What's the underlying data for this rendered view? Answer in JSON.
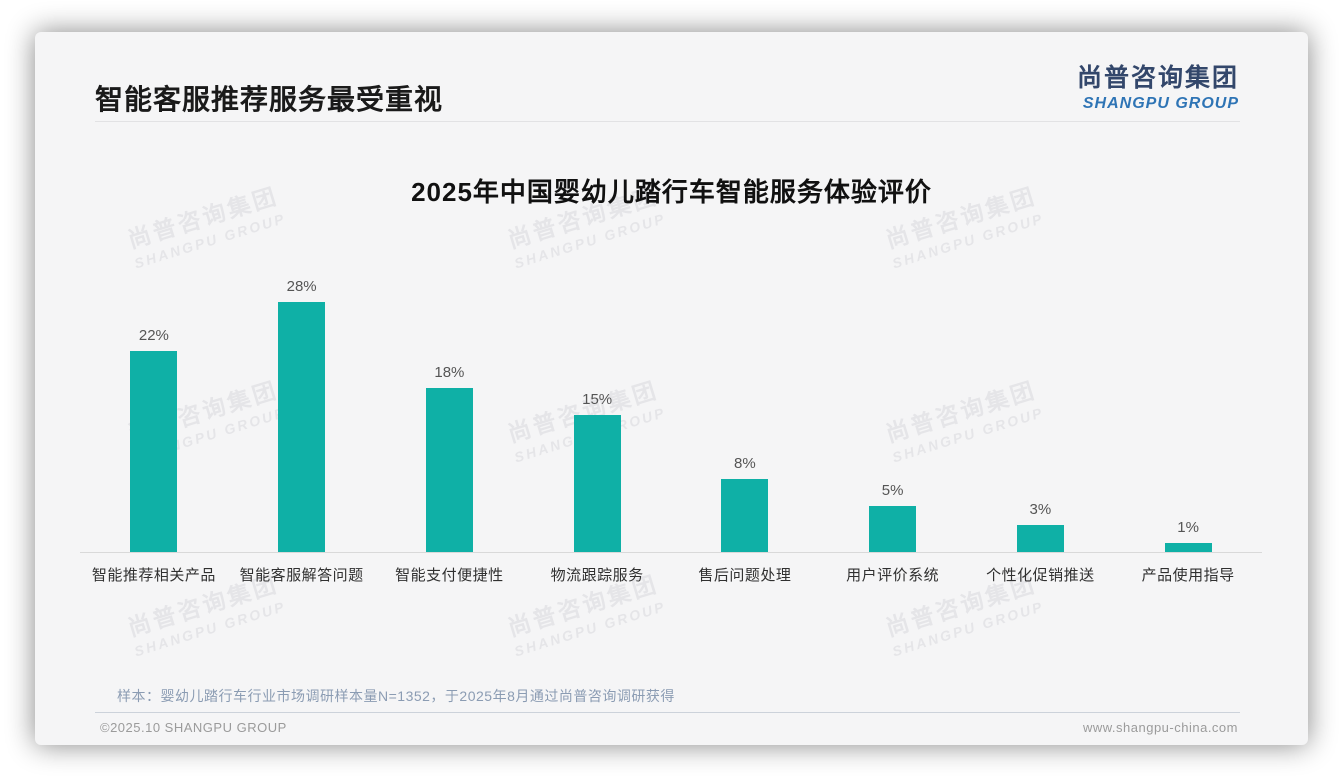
{
  "header": {
    "title": "智能客服推荐服务最受重视",
    "logo_cn": "尚普咨询集团",
    "logo_en": "SHANGPU GROUP"
  },
  "watermark": {
    "cn": "尚普咨询集团",
    "en": "SHANGPU GROUP"
  },
  "chart_data": {
    "type": "bar",
    "title": "2025年中国婴幼儿踏行车智能服务体验评价",
    "categories": [
      "智能推荐相关产品",
      "智能客服解答问题",
      "智能支付便捷性",
      "物流跟踪服务",
      "售后问题处理",
      "用户评价系统",
      "个性化促销推送",
      "产品使用指导"
    ],
    "values": [
      22,
      28,
      18,
      15,
      8,
      5,
      3,
      1
    ],
    "data_labels": [
      "22%",
      "28%",
      "18%",
      "15%",
      "8%",
      "5%",
      "3%",
      "1%"
    ],
    "unit": "%",
    "ylim": [
      0,
      30
    ],
    "grid": false,
    "legend": "none",
    "xlabel": "",
    "ylabel": "",
    "bar_color": "#0fb0a6"
  },
  "footer": {
    "note": "样本：婴幼儿踏行车行业市场调研样本量N=1352，于2025年8月通过尚普咨询调研获得",
    "copyright": "©2025.10 SHANGPU GROUP",
    "website": "www.shangpu-china.com"
  },
  "colors": {
    "bar": "#0fb0a6",
    "logo_cn": "#33476b",
    "logo_en": "#2e74b5",
    "card_bg": "#f5f5f6"
  }
}
